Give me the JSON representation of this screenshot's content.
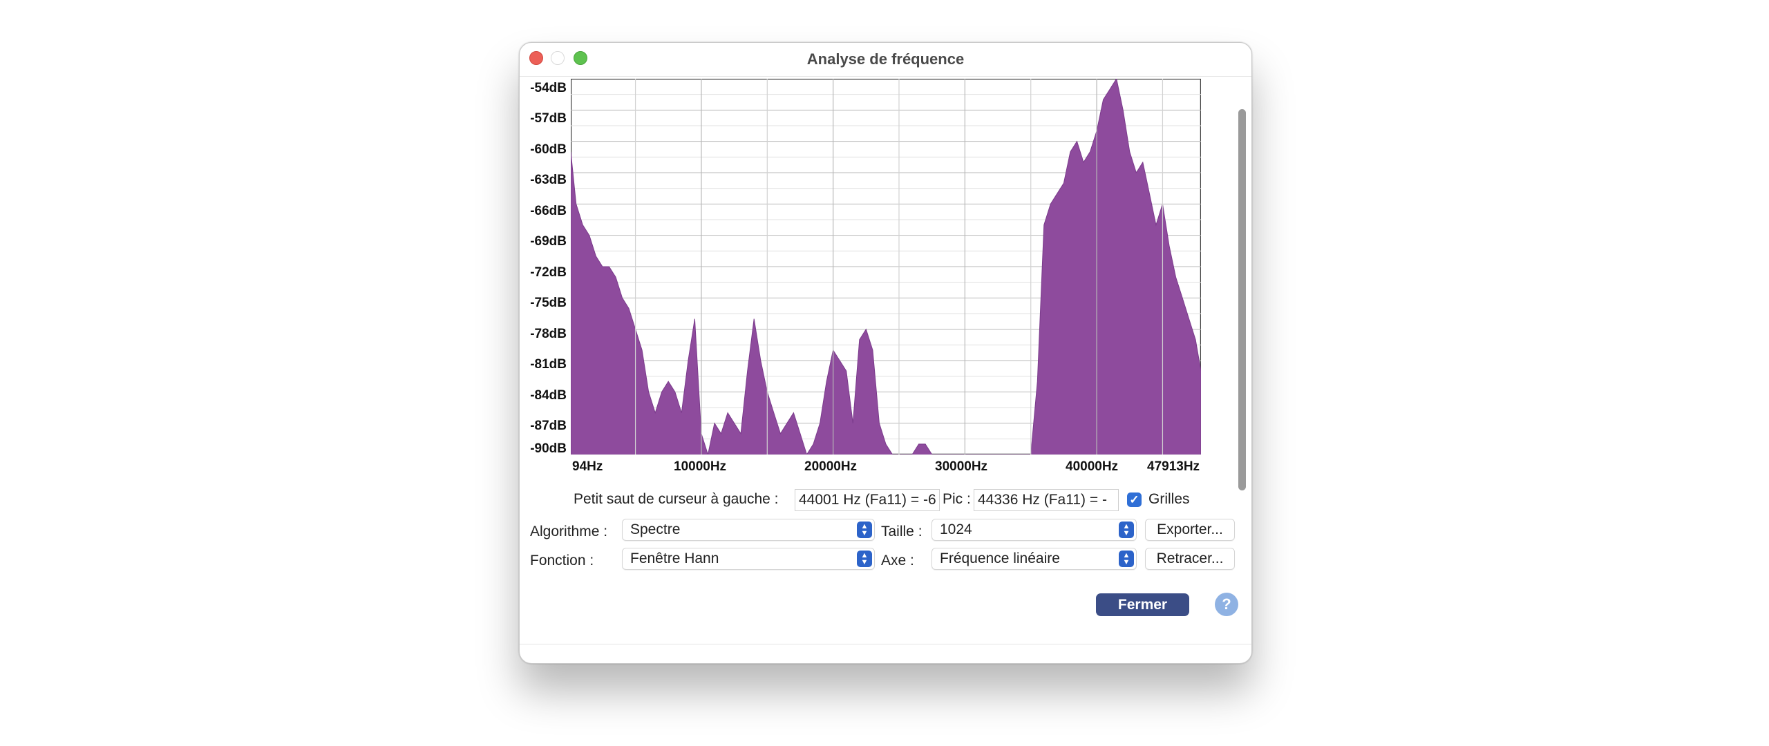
{
  "window": {
    "title": "Analyse de fréquence"
  },
  "chart_data": {
    "type": "area",
    "xlabel": "",
    "ylabel": "",
    "xlim": [
      94,
      47913
    ],
    "ylim": [
      -90,
      -54
    ],
    "y_ticks": [
      "-54dB",
      "-57dB",
      "-60dB",
      "-63dB",
      "-66dB",
      "-69dB",
      "-72dB",
      "-75dB",
      "-78dB",
      "-81dB",
      "-84dB",
      "-87dB",
      "-90dB"
    ],
    "x_ticks": [
      "94Hz",
      "10000Hz",
      "20000Hz",
      "30000Hz",
      "40000Hz",
      "47913Hz"
    ],
    "grid": true,
    "color": "#8e4b9d",
    "series": [
      {
        "x": [
          94,
          500,
          1000,
          1500,
          2000,
          2500,
          3000,
          3500,
          4000,
          4500,
          5000,
          5500,
          6000,
          6500,
          7000,
          7500,
          8000,
          8500,
          9000,
          9500,
          10000,
          10500,
          11000,
          11500,
          12000,
          12500,
          13000,
          13500,
          14000,
          14500,
          15000,
          15500,
          16000,
          16500,
          17000,
          17500,
          18000,
          18500,
          19000,
          19500,
          20000,
          20500,
          21000,
          21500,
          22000,
          22500,
          23000,
          23500,
          24000,
          24500,
          25000,
          25500,
          26000,
          26500,
          27000,
          27500,
          28000,
          28500,
          29000,
          29500,
          30000,
          31000,
          32000,
          33000,
          34000,
          35000,
          35500,
          36000,
          36500,
          37000,
          37500,
          38000,
          38500,
          39000,
          39500,
          40000,
          40500,
          41000,
          41500,
          42000,
          42500,
          43000,
          43500,
          44000,
          44500,
          45000,
          45500,
          46000,
          46500,
          47000,
          47500,
          47913
        ],
        "y": [
          -61,
          -66,
          -68,
          -69,
          -71,
          -72,
          -72,
          -73,
          -75,
          -76,
          -78,
          -80,
          -84,
          -86,
          -84,
          -83,
          -84,
          -86,
          -81,
          -77,
          -88,
          -90,
          -87,
          -88,
          -86,
          -87,
          -88,
          -82,
          -77,
          -81,
          -84,
          -86,
          -88,
          -87,
          -86,
          -88,
          -90,
          -89,
          -87,
          -83,
          -80,
          -81,
          -82,
          -87,
          -79,
          -78,
          -80,
          -87,
          -89,
          -90,
          -90,
          -90,
          -90,
          -89,
          -89,
          -90,
          -90,
          -90,
          -90,
          -90,
          -90,
          -90,
          -90,
          -90,
          -90,
          -90,
          -83,
          -68,
          -66,
          -65,
          -64,
          -61,
          -60,
          -62,
          -61,
          -59,
          -56,
          -55,
          -54,
          -57,
          -61,
          -63,
          -62,
          -65,
          -68,
          -66,
          -70,
          -73,
          -75,
          -77,
          -79,
          -82
        ]
      }
    ]
  },
  "controls": {
    "cursor_label": "Petit saut de curseur à gauche :",
    "cursor_value": "44001 Hz (Fa11) = -6",
    "peak_label": "Pic :",
    "peak_value": "44336 Hz (Fa11) = -",
    "grids_label": "Grilles",
    "algorithm_label": "Algorithme :",
    "algorithm_value": "Spectre",
    "size_label": "Taille :",
    "size_value": "1024",
    "export_button": "Exporter...",
    "function_label": "Fonction :",
    "function_value": "Fenêtre Hann",
    "axis_label": "Axe :",
    "axis_value": "Fréquence linéaire",
    "replot_button": "Retracer...",
    "close_button": "Fermer",
    "help_button": "?"
  }
}
